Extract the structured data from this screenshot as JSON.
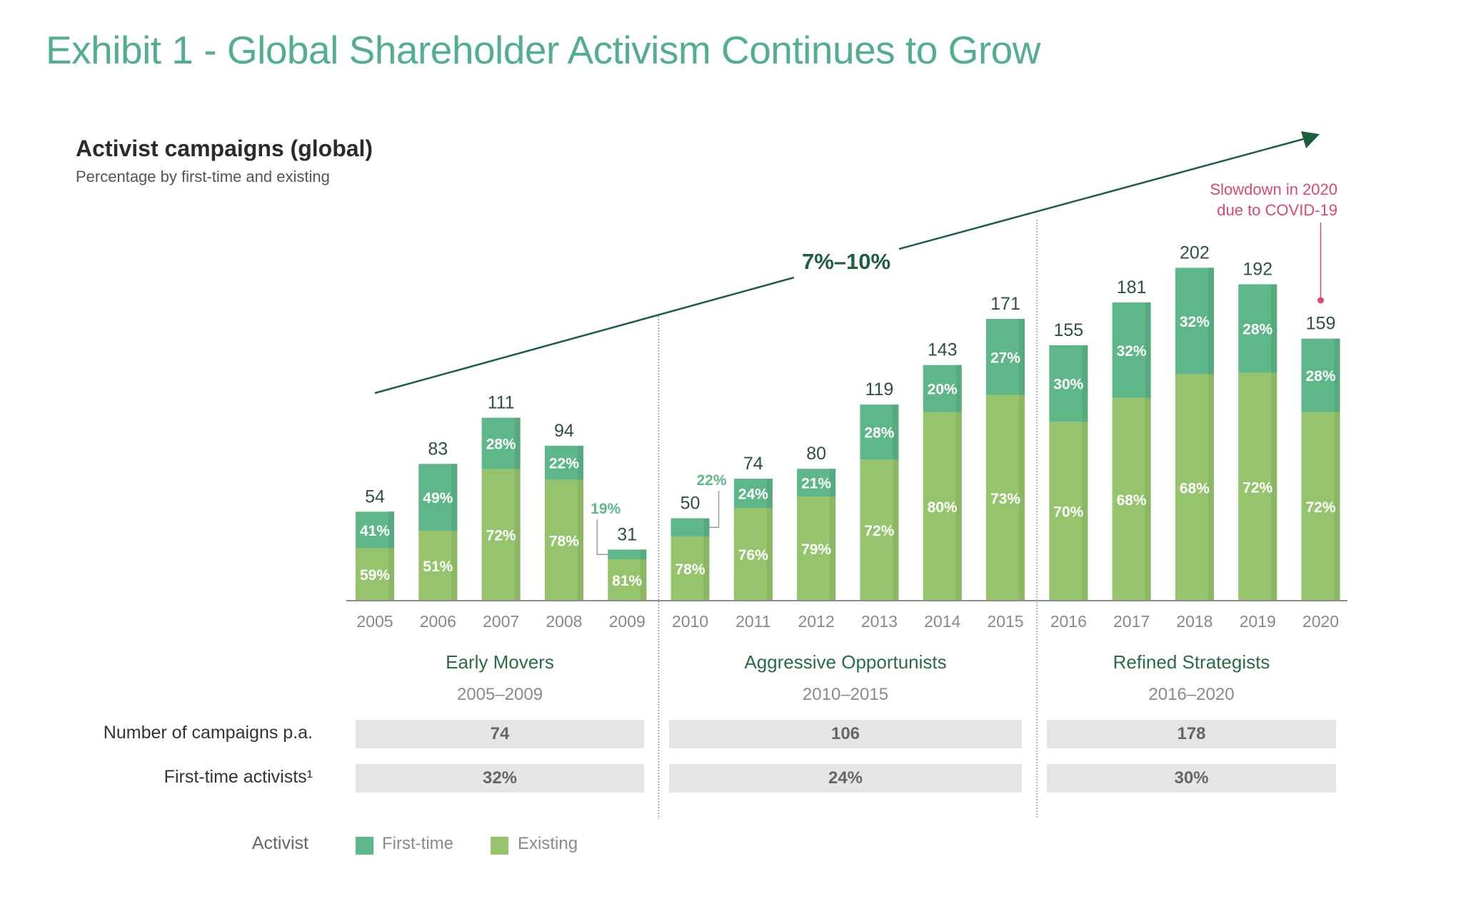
{
  "title": "Exhibit 1 - Global Shareholder Activism Continues to Grow",
  "colors": {
    "first_time": "#5eb788",
    "existing": "#95c46c",
    "title": "#52ae8f",
    "trend": "#1f5e3c",
    "annotation": "#d94a6e",
    "callout_label": "#5eb788"
  },
  "chart_data": {
    "type": "bar",
    "stacked": true,
    "title": "Activist campaigns (global)",
    "subtitle": "Percentage by first-time and existing",
    "xlabel": "",
    "ylabel": "",
    "ylim": [
      0,
      210
    ],
    "grid": false,
    "categories": [
      "2005",
      "2006",
      "2007",
      "2008",
      "2009",
      "2010",
      "2011",
      "2012",
      "2013",
      "2014",
      "2015",
      "2016",
      "2017",
      "2018",
      "2019",
      "2020"
    ],
    "totals": [
      54,
      83,
      111,
      94,
      31,
      50,
      74,
      80,
      119,
      143,
      171,
      155,
      181,
      202,
      192,
      159
    ],
    "series": [
      {
        "name": "First-time",
        "values_pct": [
          41,
          49,
          28,
          22,
          19,
          22,
          24,
          21,
          28,
          20,
          27,
          30,
          32,
          32,
          28,
          28
        ]
      },
      {
        "name": "Existing",
        "values_pct": [
          59,
          51,
          72,
          78,
          81,
          78,
          76,
          79,
          72,
          80,
          73,
          70,
          68,
          68,
          72,
          72
        ]
      }
    ],
    "pct_labels": {
      "first_time": [
        "41%",
        "49%",
        "28%",
        "22%",
        "19%",
        "22%",
        "24%",
        "21%",
        "28%",
        "20%",
        "27%",
        "30%",
        "32%",
        "32%",
        "28%",
        "28%"
      ],
      "existing": [
        "59%",
        "51%",
        "72%",
        "78%",
        "81%",
        "78%",
        "76%",
        "79%",
        "72%",
        "80%",
        "73%",
        "70%",
        "68%",
        "68%",
        "72%",
        "72%"
      ]
    },
    "callout_first_time_outside": [
      "2009",
      "2010"
    ],
    "trend": {
      "label": "7%–10%",
      "direction": "up"
    },
    "annotation": {
      "text_line1": "Slowdown in 2020",
      "text_line2": "due to COVID-19",
      "target": "2020"
    },
    "legend": {
      "title": "Activist",
      "entries": [
        "First-time",
        "Existing"
      ],
      "placement": "bottom-left"
    }
  },
  "phases": [
    {
      "name": "Early Movers",
      "years": "2005–2009",
      "campaigns_pa": "74",
      "first_time_share": "32%",
      "from": 0,
      "to": 4
    },
    {
      "name": "Aggressive Opportunists",
      "years": "2010–2015",
      "campaigns_pa": "106",
      "first_time_share": "24%",
      "from": 5,
      "to": 10
    },
    {
      "name": "Refined Strategists",
      "years": "2016–2020",
      "campaigns_pa": "178",
      "first_time_share": "30%",
      "from": 11,
      "to": 15
    }
  ],
  "table": {
    "row1_label": "Number of campaigns p.a.",
    "row2_label": "First-time activists¹"
  },
  "legend": {
    "title": "Activist",
    "first_time": "First-time",
    "existing": "Existing"
  }
}
